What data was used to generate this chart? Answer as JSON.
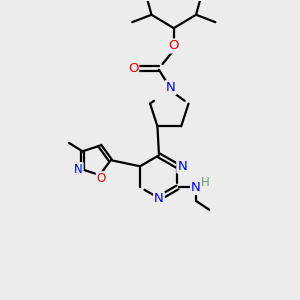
{
  "bg_color": "#ececec",
  "bond_color": "#000000",
  "bond_width": 1.6,
  "atom_colors": {
    "N": "#0000ee",
    "O": "#ee0000",
    "H": "#669966",
    "C": "#000000"
  },
  "font_size": 8.5,
  "fig_size": [
    3.0,
    3.0
  ],
  "dpi": 100
}
